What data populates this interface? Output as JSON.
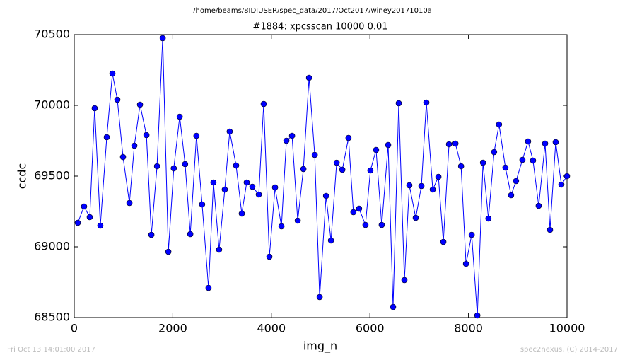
{
  "chart_data": {
    "type": "line",
    "suptitle": "/home/beams/8IDIUSER/spec_data/2017/Oct2017/winey20171010a",
    "title": "#1884: xpcsscan 10000 0.01",
    "xlabel": "img_n",
    "ylabel": "ccdc",
    "footer_left": "Fri Oct 13 14:01:00 2017",
    "footer_right": "spec2nexus, (C) 2014-2017",
    "xlim": [
      0,
      10000
    ],
    "xticks": [
      0,
      2000,
      4000,
      6000,
      8000,
      10000
    ],
    "ylim": [
      68500,
      70500
    ],
    "yticks": [
      68500,
      69000,
      69500,
      70000,
      70500
    ],
    "series": [
      {
        "name": "ccdc",
        "color": "#0000ff",
        "x": [
          72,
          200,
          315,
          415,
          530,
          660,
          775,
          875,
          990,
          1120,
          1220,
          1335,
          1465,
          1565,
          1680,
          1795,
          1910,
          2020,
          2140,
          2250,
          2355,
          2480,
          2595,
          2725,
          2825,
          2940,
          3055,
          3155,
          3285,
          3400,
          3500,
          3615,
          3745,
          3845,
          3960,
          4075,
          4205,
          4305,
          4420,
          4535,
          4650,
          4765,
          4880,
          4980,
          5110,
          5210,
          5325,
          5440,
          5565,
          5665,
          5780,
          5910,
          6010,
          6125,
          6240,
          6370,
          6470,
          6585,
          6700,
          6800,
          6930,
          7045,
          7145,
          7275,
          7390,
          7490,
          7605,
          7735,
          7850,
          7950,
          8065,
          8180,
          8295,
          8405,
          8520,
          8620,
          8750,
          8865,
          8965,
          9095,
          9210,
          9310,
          9425,
          9555,
          9655,
          9770,
          9885,
          10000
        ],
        "values": [
          69170,
          69285,
          69210,
          69980,
          69150,
          69775,
          70225,
          70040,
          69635,
          69310,
          69715,
          70005,
          69790,
          69085,
          69570,
          70475,
          68965,
          69555,
          69920,
          69585,
          69090,
          69785,
          69300,
          68710,
          69455,
          68980,
          69405,
          69815,
          69575,
          69235,
          69455,
          69425,
          69370,
          70010,
          68930,
          69420,
          69145,
          69750,
          69785,
          69185,
          69550,
          70195,
          69650,
          68645,
          69360,
          69045,
          69595,
          69545,
          69770,
          69245,
          69270,
          69155,
          69540,
          69685,
          69155,
          69720,
          68575,
          70015,
          68765,
          69435,
          69205,
          69430,
          70020,
          69405,
          69495,
          69035,
          69725,
          69730,
          69570,
          68880,
          69085,
          68515,
          69595,
          69200,
          69670,
          69865,
          69560,
          69365,
          69465,
          69615,
          69745,
          69610,
          69290,
          69730,
          69120,
          69740,
          69440,
          69500
        ]
      }
    ]
  }
}
